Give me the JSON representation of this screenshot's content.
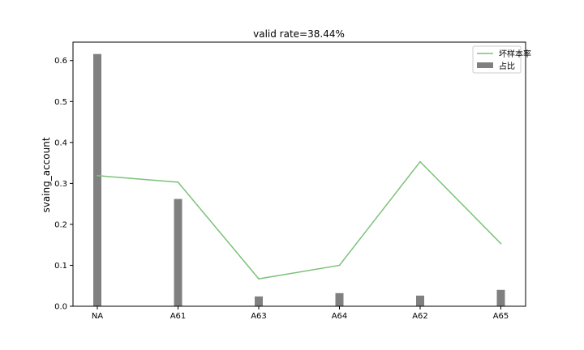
{
  "chart_data": {
    "type": "bar",
    "title": "valid rate=38.44%",
    "xlabel": "",
    "ylabel": "svaing_account",
    "categories": [
      "NA",
      "A61",
      "A63",
      "A64",
      "A62",
      "A65"
    ],
    "ylim": [
      0,
      0.645
    ],
    "yticks": [
      0.0,
      0.1,
      0.2,
      0.3,
      0.4,
      0.5,
      0.6
    ],
    "ytick_labels": [
      "0.0",
      "0.1",
      "0.2",
      "0.3",
      "0.4",
      "0.5",
      "0.6"
    ],
    "grid": false,
    "legend_position": "top-right",
    "series": [
      {
        "name": "坏样本率",
        "type": "line",
        "color": "#7dc27a",
        "values": [
          0.319,
          0.303,
          0.067,
          0.1,
          0.353,
          0.153
        ]
      },
      {
        "name": "占比",
        "type": "bar",
        "color": "#808080",
        "values": [
          0.616,
          0.262,
          0.024,
          0.032,
          0.026,
          0.04
        ]
      }
    ]
  }
}
